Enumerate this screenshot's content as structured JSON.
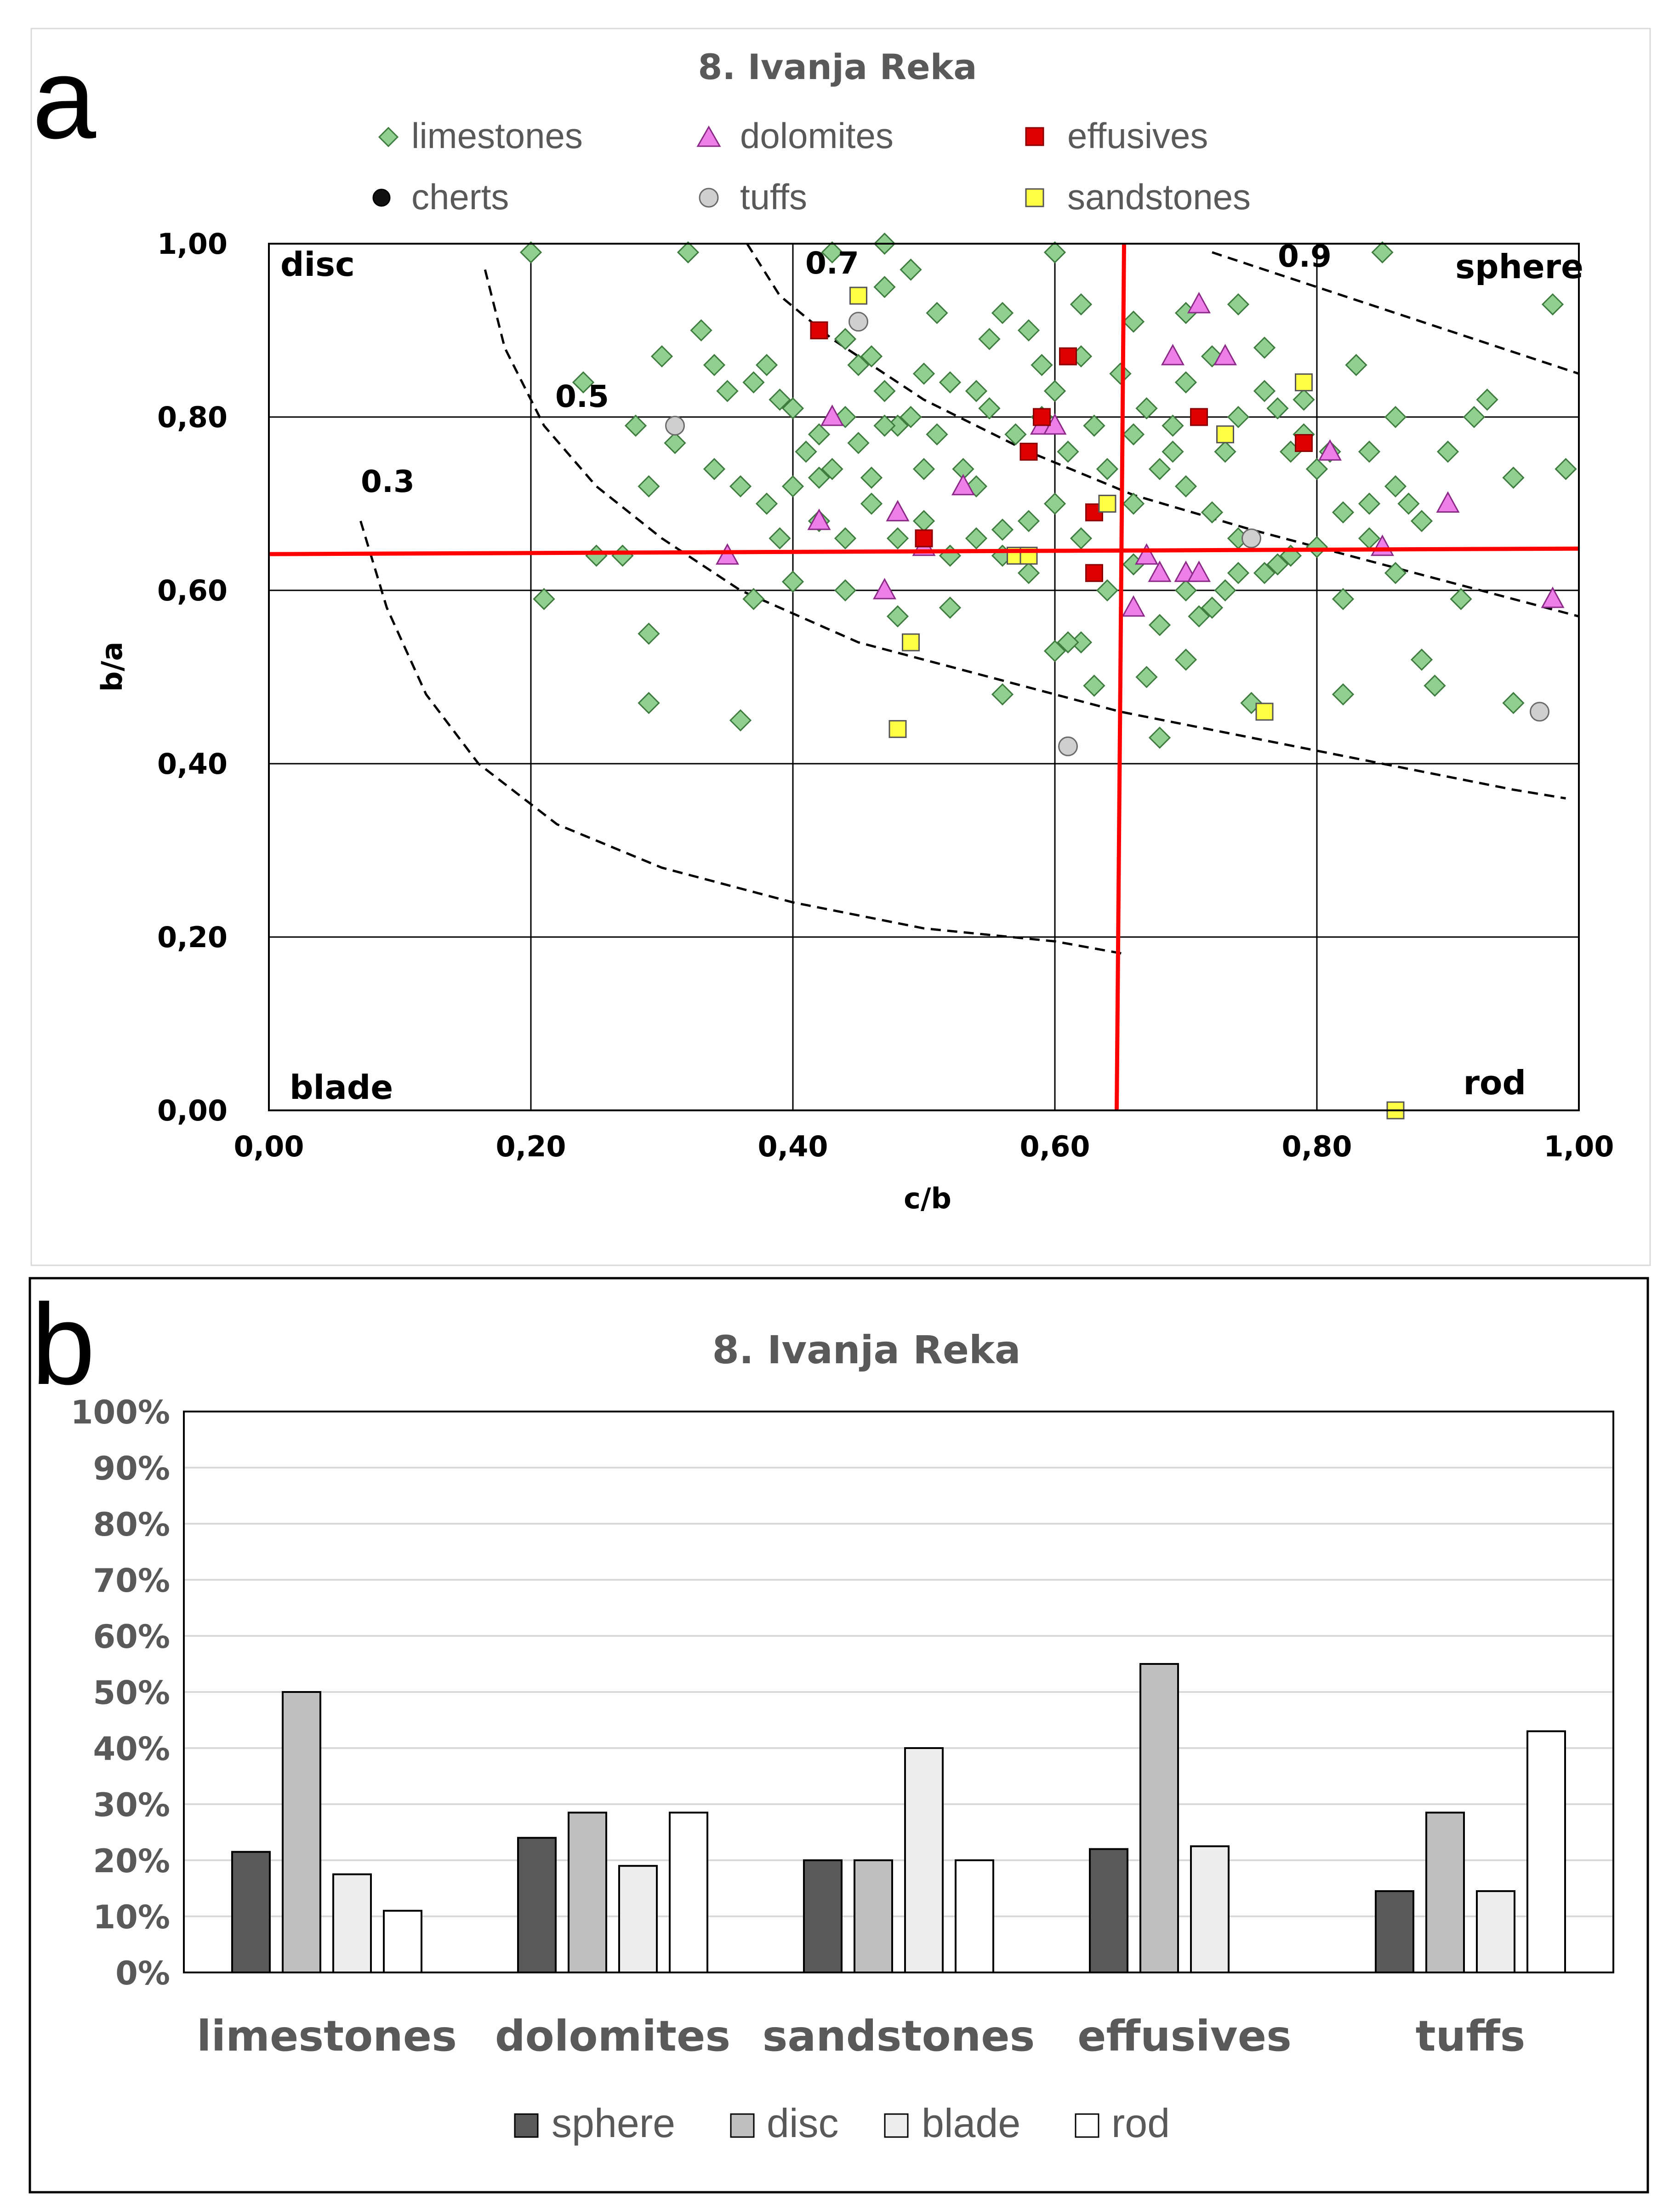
{
  "panel_labels": {
    "a": "a",
    "b": "b"
  },
  "chart_data": [
    {
      "type": "scatter",
      "title": "8. Ivanja Reka",
      "xlabel": "c/b",
      "ylabel": "b/a",
      "xlim": [
        0,
        1
      ],
      "ylim": [
        0,
        1
      ],
      "x_ticks": [
        "0,00",
        "0,20",
        "0,40",
        "0,60",
        "0,80",
        "1,00"
      ],
      "y_ticks": [
        "0,00",
        "0,20",
        "0,40",
        "0,60",
        "0,80",
        "1,00"
      ],
      "grid": true,
      "legend_position": "top",
      "zone_labels": {
        "disc": "disc",
        "sphere": "sphere",
        "blade": "blade",
        "rod": "rod"
      },
      "contours": [
        {
          "label": "0.3",
          "value": 0.3
        },
        {
          "label": "0.5",
          "value": 0.5
        },
        {
          "label": "0.7",
          "value": 0.7
        },
        {
          "label": "0.9",
          "value": 0.9
        }
      ],
      "reference_lines": {
        "x": 0.65,
        "y": 0.645,
        "color": "#ff0000"
      },
      "series": [
        {
          "name": "limestones",
          "marker": "diamond",
          "color": "#8fcf8f",
          "stroke": "#3f7a3f",
          "points": [
            [
              0.2,
              0.99
            ],
            [
              0.32,
              0.99
            ],
            [
              0.43,
              0.99
            ],
            [
              0.47,
              1.0
            ],
            [
              0.49,
              0.97
            ],
            [
              0.6,
              0.99
            ],
            [
              0.85,
              0.99
            ],
            [
              0.98,
              0.93
            ],
            [
              0.21,
              0.59
            ],
            [
              0.25,
              0.64
            ],
            [
              0.27,
              0.64
            ],
            [
              0.3,
              0.87
            ],
            [
              0.33,
              0.9
            ],
            [
              0.35,
              0.83
            ],
            [
              0.37,
              0.84
            ],
            [
              0.38,
              0.86
            ],
            [
              0.39,
              0.82
            ],
            [
              0.4,
              0.81
            ],
            [
              0.42,
              0.78
            ],
            [
              0.44,
              0.8
            ],
            [
              0.45,
              0.86
            ],
            [
              0.46,
              0.87
            ],
            [
              0.47,
              0.83
            ],
            [
              0.48,
              0.79
            ],
            [
              0.5,
              0.85
            ],
            [
              0.52,
              0.84
            ],
            [
              0.54,
              0.83
            ],
            [
              0.56,
              0.92
            ],
            [
              0.58,
              0.9
            ],
            [
              0.6,
              0.83
            ],
            [
              0.62,
              0.93
            ],
            [
              0.65,
              0.85
            ],
            [
              0.67,
              0.81
            ],
            [
              0.69,
              0.79
            ],
            [
              0.7,
              0.84
            ],
            [
              0.72,
              0.87
            ],
            [
              0.74,
              0.8
            ],
            [
              0.76,
              0.83
            ],
            [
              0.78,
              0.76
            ],
            [
              0.8,
              0.74
            ],
            [
              0.82,
              0.69
            ],
            [
              0.84,
              0.7
            ],
            [
              0.86,
              0.72
            ],
            [
              0.88,
              0.68
            ],
            [
              0.9,
              0.76
            ],
            [
              0.92,
              0.8
            ],
            [
              0.95,
              0.73
            ],
            [
              0.99,
              0.74
            ],
            [
              0.29,
              0.72
            ],
            [
              0.31,
              0.77
            ],
            [
              0.34,
              0.74
            ],
            [
              0.36,
              0.72
            ],
            [
              0.38,
              0.7
            ],
            [
              0.4,
              0.72
            ],
            [
              0.42,
              0.68
            ],
            [
              0.44,
              0.66
            ],
            [
              0.46,
              0.7
            ],
            [
              0.48,
              0.66
            ],
            [
              0.5,
              0.68
            ],
            [
              0.52,
              0.64
            ],
            [
              0.54,
              0.66
            ],
            [
              0.56,
              0.67
            ],
            [
              0.58,
              0.68
            ],
            [
              0.6,
              0.7
            ],
            [
              0.62,
              0.66
            ],
            [
              0.66,
              0.7
            ],
            [
              0.68,
              0.74
            ],
            [
              0.7,
              0.72
            ],
            [
              0.72,
              0.69
            ],
            [
              0.74,
              0.66
            ],
            [
              0.76,
              0.62
            ],
            [
              0.78,
              0.64
            ],
            [
              0.8,
              0.65
            ],
            [
              0.82,
              0.59
            ],
            [
              0.7,
              0.6
            ],
            [
              0.72,
              0.58
            ],
            [
              0.74,
              0.62
            ],
            [
              0.68,
              0.56
            ],
            [
              0.7,
              0.52
            ],
            [
              0.62,
              0.54
            ],
            [
              0.6,
              0.53
            ],
            [
              0.56,
              0.48
            ],
            [
              0.52,
              0.58
            ],
            [
              0.48,
              0.57
            ],
            [
              0.44,
              0.6
            ],
            [
              0.4,
              0.61
            ],
            [
              0.37,
              0.59
            ],
            [
              0.36,
              0.45
            ],
            [
              0.29,
              0.47
            ],
            [
              0.29,
              0.55
            ],
            [
              0.67,
              0.5
            ],
            [
              0.68,
              0.43
            ],
            [
              0.63,
              0.49
            ],
            [
              0.61,
              0.54
            ],
            [
              0.88,
              0.52
            ],
            [
              0.89,
              0.49
            ],
            [
              0.82,
              0.48
            ],
            [
              0.75,
              0.47
            ],
            [
              0.91,
              0.59
            ],
            [
              0.95,
              0.47
            ],
            [
              0.28,
              0.79
            ],
            [
              0.24,
              0.84
            ],
            [
              0.34,
              0.86
            ],
            [
              0.41,
              0.76
            ],
            [
              0.43,
              0.74
            ],
            [
              0.45,
              0.77
            ],
            [
              0.47,
              0.79
            ],
            [
              0.49,
              0.8
            ],
            [
              0.51,
              0.78
            ],
            [
              0.53,
              0.74
            ],
            [
              0.55,
              0.81
            ],
            [
              0.57,
              0.78
            ],
            [
              0.59,
              0.8
            ],
            [
              0.61,
              0.76
            ],
            [
              0.63,
              0.79
            ],
            [
              0.64,
              0.74
            ],
            [
              0.66,
              0.78
            ],
            [
              0.69,
              0.76
            ],
            [
              0.73,
              0.76
            ],
            [
              0.77,
              0.81
            ],
            [
              0.79,
              0.78
            ],
            [
              0.83,
              0.86
            ],
            [
              0.86,
              0.8
            ],
            [
              0.87,
              0.7
            ],
            [
              0.93,
              0.82
            ],
            [
              0.84,
              0.66
            ],
            [
              0.86,
              0.62
            ],
            [
              0.66,
              0.63
            ],
            [
              0.64,
              0.6
            ],
            [
              0.58,
              0.62
            ],
            [
              0.56,
              0.64
            ],
            [
              0.54,
              0.72
            ],
            [
              0.5,
              0.74
            ],
            [
              0.46,
              0.73
            ],
            [
              0.42,
              0.73
            ],
            [
              0.39,
              0.66
            ],
            [
              0.44,
              0.89
            ],
            [
              0.47,
              0.95
            ],
            [
              0.51,
              0.92
            ],
            [
              0.55,
              0.89
            ],
            [
              0.59,
              0.86
            ],
            [
              0.62,
              0.87
            ],
            [
              0.66,
              0.91
            ],
            [
              0.7,
              0.92
            ],
            [
              0.74,
              0.93
            ],
            [
              0.76,
              0.88
            ],
            [
              0.79,
              0.82
            ],
            [
              0.81,
              0.76
            ],
            [
              0.84,
              0.76
            ],
            [
              0.77,
              0.63
            ],
            [
              0.73,
              0.6
            ],
            [
              0.71,
              0.57
            ]
          ]
        },
        {
          "name": "dolomites",
          "marker": "triangle",
          "color": "#ee7ee8",
          "stroke": "#8a2a86",
          "points": [
            [
              0.35,
              0.64
            ],
            [
              0.42,
              0.68
            ],
            [
              0.43,
              0.8
            ],
            [
              0.47,
              0.6
            ],
            [
              0.48,
              0.69
            ],
            [
              0.5,
              0.65
            ],
            [
              0.53,
              0.72
            ],
            [
              0.59,
              0.79
            ],
            [
              0.6,
              0.79
            ],
            [
              0.66,
              0.58
            ],
            [
              0.67,
              0.64
            ],
            [
              0.68,
              0.62
            ],
            [
              0.69,
              0.87
            ],
            [
              0.7,
              0.62
            ],
            [
              0.71,
              0.62
            ],
            [
              0.71,
              0.93
            ],
            [
              0.73,
              0.87
            ],
            [
              0.81,
              0.76
            ],
            [
              0.85,
              0.65
            ],
            [
              0.9,
              0.7
            ],
            [
              0.98,
              0.59
            ]
          ]
        },
        {
          "name": "effusives",
          "marker": "square",
          "color": "#dd0000",
          "stroke": "#880000",
          "points": [
            [
              0.42,
              0.9
            ],
            [
              0.5,
              0.66
            ],
            [
              0.58,
              0.76
            ],
            [
              0.59,
              0.8
            ],
            [
              0.61,
              0.87
            ],
            [
              0.63,
              0.69
            ],
            [
              0.63,
              0.62
            ],
            [
              0.71,
              0.8
            ],
            [
              0.79,
              0.77
            ]
          ]
        },
        {
          "name": "cherts",
          "marker": "circle",
          "color": "#111111",
          "stroke": "#000000",
          "points": []
        },
        {
          "name": "tuffs",
          "marker": "circle",
          "color": "#cfcfcf",
          "stroke": "#6a6a6a",
          "points": [
            [
              0.31,
              0.79
            ],
            [
              0.45,
              0.91
            ],
            [
              0.61,
              0.42
            ],
            [
              0.75,
              0.66
            ],
            [
              0.97,
              0.46
            ]
          ]
        },
        {
          "name": "sandstones",
          "marker": "square",
          "color": "#ffff44",
          "stroke": "#555555",
          "points": [
            [
              0.45,
              0.94
            ],
            [
              0.48,
              0.44
            ],
            [
              0.49,
              0.54
            ],
            [
              0.57,
              0.64
            ],
            [
              0.58,
              0.64
            ],
            [
              0.64,
              0.7
            ],
            [
              0.73,
              0.78
            ],
            [
              0.76,
              0.46
            ],
            [
              0.79,
              0.84
            ],
            [
              0.86,
              0.0
            ]
          ]
        }
      ]
    },
    {
      "type": "bar",
      "title": "8. Ivanja Reka",
      "categories": [
        "limestones",
        "dolomites",
        "sandstones",
        "effusives",
        "tuffs"
      ],
      "ylim": [
        0,
        100
      ],
      "y_ticks": [
        "0%",
        "10%",
        "20%",
        "30%",
        "40%",
        "50%",
        "60%",
        "70%",
        "80%",
        "90%",
        "100%"
      ],
      "grid": true,
      "legend_position": "bottom",
      "series": [
        {
          "name": "sphere",
          "color": "#595959",
          "values": [
            21.5,
            24,
            20,
            22,
            14.5
          ]
        },
        {
          "name": "disc",
          "color": "#bfbfbf",
          "values": [
            50,
            28.5,
            20,
            55,
            28.5
          ]
        },
        {
          "name": "blade",
          "color": "#ededed",
          "values": [
            17.5,
            19,
            40,
            22.5,
            14.5
          ]
        },
        {
          "name": "rod",
          "color": "#ffffff",
          "values": [
            11,
            28.5,
            20,
            0,
            43
          ]
        }
      ]
    }
  ]
}
